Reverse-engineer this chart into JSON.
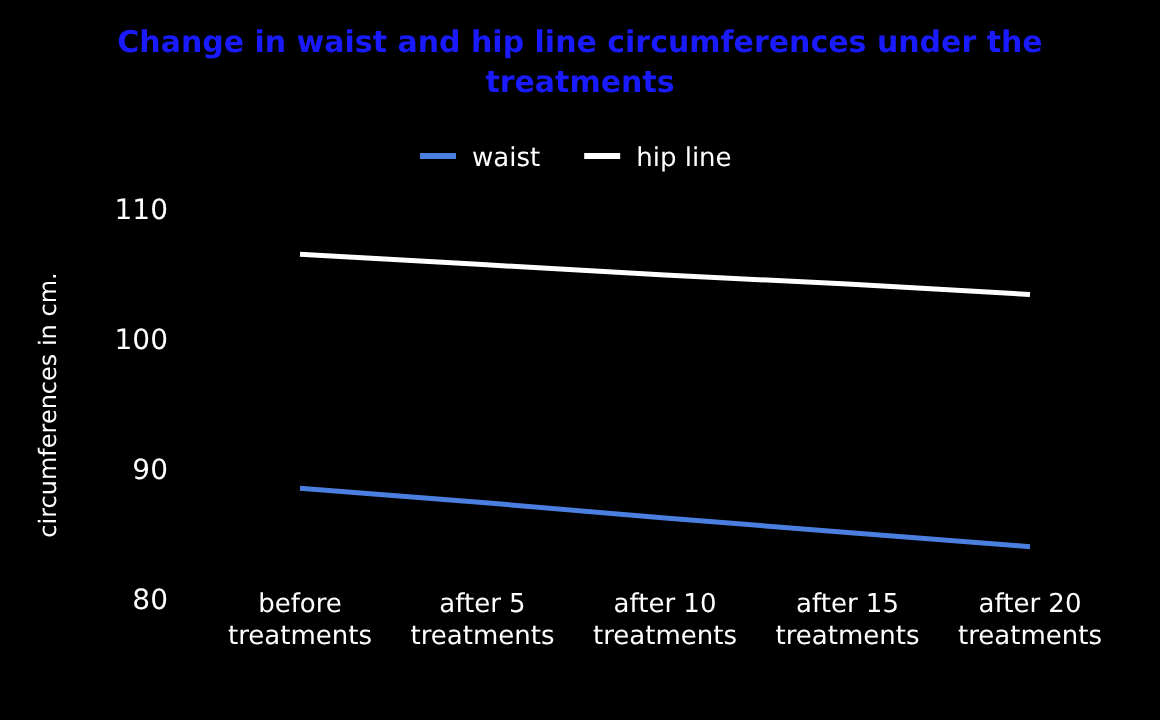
{
  "chart_data": {
    "type": "line",
    "title": "Change in waist and hip line circumferences under the treatments",
    "ylabel": "circumferences in cm.",
    "categories": [
      "before treatments",
      "after 5 treatments",
      "after 10 treatments",
      "after 15 treatments",
      "after 20 treatments"
    ],
    "series": [
      {
        "name": "waist",
        "color": "#4a7fe0",
        "values": [
          88.6,
          87.5,
          86.3,
          85.2,
          84.1
        ]
      },
      {
        "name": "hip line",
        "color": "#ffffff",
        "values": [
          106.6,
          105.8,
          105.0,
          104.3,
          103.5
        ]
      }
    ],
    "ylim": [
      80,
      110
    ],
    "yticks": [
      80,
      90,
      100,
      110
    ],
    "grid": false,
    "legend": "top",
    "marker": "none",
    "line_style": "solid"
  }
}
